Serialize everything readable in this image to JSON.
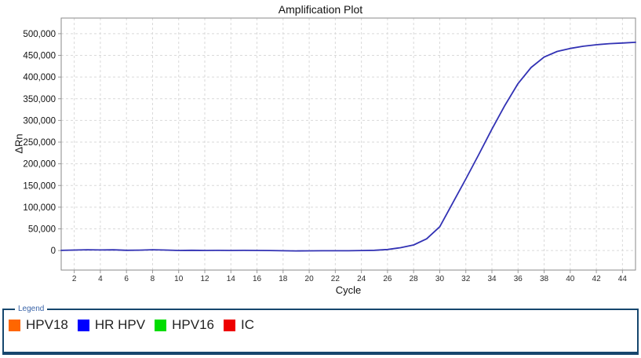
{
  "chart_data": {
    "type": "line",
    "title": "Amplification Plot",
    "xlabel": "Cycle",
    "ylabel": "ΔRn",
    "xlim": [
      1,
      45
    ],
    "ylim": [
      -45000,
      536000
    ],
    "x_ticks": [
      2,
      4,
      6,
      8,
      10,
      12,
      14,
      16,
      18,
      20,
      22,
      24,
      26,
      28,
      30,
      32,
      34,
      36,
      38,
      40,
      42,
      44
    ],
    "y_ticks": [
      0,
      50000,
      100000,
      150000,
      200000,
      250000,
      300000,
      350000,
      400000,
      450000,
      500000
    ],
    "grid": true,
    "grid_color": "#d9d9d9",
    "frame_color": "#8a8a8a",
    "tick_color": "#9a9a9a",
    "legend_position": "bottom",
    "series": [
      {
        "name": "HR HPV",
        "color": "#3232b4",
        "x": [
          1,
          2,
          3,
          4,
          5,
          6,
          7,
          8,
          9,
          10,
          11,
          12,
          13,
          14,
          15,
          16,
          17,
          18,
          19,
          20,
          21,
          22,
          23,
          24,
          25,
          26,
          27,
          28,
          29,
          30,
          31,
          32,
          33,
          34,
          35,
          36,
          37,
          38,
          39,
          40,
          41,
          42,
          43,
          44,
          45
        ],
        "y": [
          500,
          1200,
          1800,
          1300,
          1700,
          600,
          1000,
          1800,
          1200,
          300,
          600,
          300,
          500,
          300,
          400,
          300,
          100,
          -400,
          -900,
          -600,
          -400,
          -500,
          -400,
          100,
          700,
          2500,
          6500,
          13000,
          27000,
          55000,
          110000,
          165000,
          222000,
          280000,
          335000,
          385000,
          422000,
          446000,
          459000,
          466000,
          471000,
          474500,
          477000,
          478500,
          480000
        ]
      }
    ]
  },
  "legend": {
    "title": "Legend",
    "border_color": "#16466e",
    "title_color": "#3a64a8",
    "items": [
      {
        "label": "HPV18",
        "color": "#ff6600"
      },
      {
        "label": "HR HPV",
        "color": "#0000ff"
      },
      {
        "label": "HPV16",
        "color": "#00dd00"
      },
      {
        "label": "IC",
        "color": "#ee0000"
      }
    ]
  }
}
